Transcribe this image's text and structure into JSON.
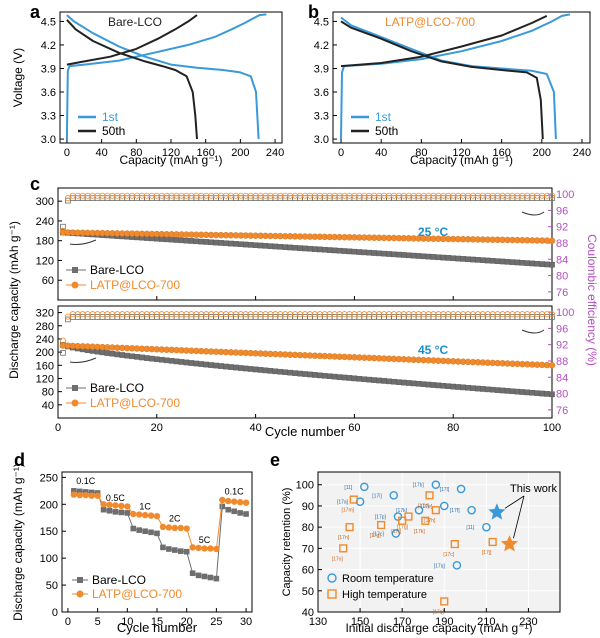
{
  "colors": {
    "blue": "#3a9ad9",
    "black": "#222222",
    "gray": "#6e6e6e",
    "orange": "#f08a2c",
    "purple": "#b24fc0",
    "cyan_text": "#1a8fd1",
    "panel_label": "#000000"
  },
  "chart_data": [
    {
      "id": "a",
      "panel_label": "a",
      "type": "line",
      "title": "Bare-LCO",
      "xlabel": "Capacity (mAh g⁻¹)",
      "ylabel": "Voltage (V)",
      "xlim": [
        -8,
        248
      ],
      "ylim": [
        2.95,
        4.62
      ],
      "xticks": [
        "0",
        "40",
        "80",
        "120",
        "160",
        "200",
        "240"
      ],
      "yticks": [
        "3.0",
        "3.3",
        "3.6",
        "3.9",
        "4.2",
        "4.5"
      ],
      "legend": [
        "1st",
        "50th"
      ],
      "series": [
        {
          "name": "1st",
          "color": "blue",
          "segments": [
            [
              [
                0,
                3.0
              ],
              [
                1,
                3.87
              ],
              [
                3,
                3.93
              ],
              [
                20,
                3.95
              ],
              [
                60,
                4.0
              ],
              [
                100,
                4.1
              ],
              [
                140,
                4.2
              ],
              [
                170,
                4.3
              ],
              [
                190,
                4.4
              ],
              [
                205,
                4.48
              ],
              [
                215,
                4.54
              ],
              [
                222,
                4.58
              ],
              [
                230,
                4.59
              ]
            ],
            [
              [
                0,
                4.58
              ],
              [
                8,
                4.5
              ],
              [
                30,
                4.35
              ],
              [
                60,
                4.18
              ],
              [
                90,
                4.05
              ],
              [
                120,
                3.95
              ],
              [
                150,
                3.91
              ],
              [
                180,
                3.88
              ],
              [
                200,
                3.85
              ],
              [
                212,
                3.8
              ],
              [
                218,
                3.6
              ],
              [
                221,
                3.0
              ]
            ]
          ]
        },
        {
          "name": "50th",
          "color": "black",
          "segments": [
            [
              [
                0,
                3.95
              ],
              [
                20,
                3.99
              ],
              [
                50,
                4.05
              ],
              [
                80,
                4.15
              ],
              [
                105,
                4.28
              ],
              [
                125,
                4.4
              ],
              [
                140,
                4.5
              ],
              [
                150,
                4.58
              ]
            ],
            [
              [
                0,
                4.52
              ],
              [
                10,
                4.4
              ],
              [
                30,
                4.25
              ],
              [
                60,
                4.1
              ],
              [
                90,
                3.99
              ],
              [
                110,
                3.93
              ],
              [
                125,
                3.88
              ],
              [
                138,
                3.8
              ],
              [
                145,
                3.6
              ],
              [
                148,
                3.3
              ],
              [
                150,
                3.0
              ]
            ]
          ]
        }
      ]
    },
    {
      "id": "b",
      "panel_label": "b",
      "type": "line",
      "title": "LATP@LCO-700",
      "xlabel": "Capacity (mAh g⁻¹)",
      "ylabel": "",
      "xlim": [
        -8,
        248
      ],
      "ylim": [
        2.95,
        4.62
      ],
      "xticks": [
        "0",
        "40",
        "80",
        "120",
        "160",
        "200",
        "240"
      ],
      "yticks": [
        "3.0",
        "3.3",
        "3.6",
        "3.9",
        "4.2",
        "4.5"
      ],
      "legend": [
        "1st",
        "50th"
      ],
      "series": [
        {
          "name": "1st",
          "color": "blue",
          "segments": [
            [
              [
                0,
                3.0
              ],
              [
                1,
                3.85
              ],
              [
                3,
                3.93
              ],
              [
                40,
                3.96
              ],
              [
                80,
                4.02
              ],
              [
                120,
                4.12
              ],
              [
                160,
                4.25
              ],
              [
                190,
                4.38
              ],
              [
                210,
                4.5
              ],
              [
                220,
                4.57
              ],
              [
                228,
                4.59
              ]
            ],
            [
              [
                0,
                4.55
              ],
              [
                10,
                4.45
              ],
              [
                40,
                4.3
              ],
              [
                70,
                4.15
              ],
              [
                100,
                4.0
              ],
              [
                130,
                3.93
              ],
              [
                160,
                3.9
              ],
              [
                190,
                3.87
              ],
              [
                205,
                3.83
              ],
              [
                212,
                3.6
              ],
              [
                214,
                3.0
              ]
            ]
          ]
        },
        {
          "name": "50th",
          "color": "black",
          "segments": [
            [
              [
                0,
                3.93
              ],
              [
                40,
                3.97
              ],
              [
                80,
                4.05
              ],
              [
                120,
                4.18
              ],
              [
                160,
                4.32
              ],
              [
                190,
                4.48
              ],
              [
                205,
                4.57
              ]
            ],
            [
              [
                0,
                4.5
              ],
              [
                10,
                4.42
              ],
              [
                40,
                4.28
              ],
              [
                70,
                4.12
              ],
              [
                100,
                3.99
              ],
              [
                130,
                3.92
              ],
              [
                160,
                3.88
              ],
              [
                185,
                3.85
              ],
              [
                195,
                3.78
              ],
              [
                199,
                3.5
              ],
              [
                201,
                3.0
              ]
            ]
          ]
        }
      ]
    },
    {
      "id": "c1",
      "panel_label": "c",
      "type": "scatter",
      "annotation": "25 °C",
      "xlim": [
        0,
        100
      ],
      "ylim": [
        0,
        340
      ],
      "y2lim": [
        74,
        101.5
      ],
      "yticks": [
        "60",
        "120",
        "180",
        "240",
        "300"
      ],
      "y2ticks": [
        "76",
        "80",
        "84",
        "88",
        "92",
        "96",
        "100"
      ],
      "legend": [
        "Bare-LCO",
        "LATP@LCO-700"
      ],
      "series": [
        {
          "name": "Bare-LCO",
          "color": "gray",
          "axis": "left",
          "start": 205,
          "end": 107,
          "first": 205,
          "peak_cycle": 4,
          "peak": 210
        },
        {
          "name": "LATP@LCO-700",
          "color": "orange",
          "axis": "left",
          "start": 205,
          "end": 180,
          "first": 205,
          "peak_cycle": 4,
          "peak": 208
        },
        {
          "name": "Bare-LCO CE",
          "color": "gray",
          "axis": "right",
          "first": 92,
          "plateau": 99.0
        },
        {
          "name": "LATP@LCO-700 CE",
          "color": "orange",
          "axis": "right",
          "first": 91,
          "plateau": 99.6
        }
      ]
    },
    {
      "id": "c2",
      "panel_label": "",
      "type": "scatter",
      "annotation": "45 °C",
      "xlabel": "Cycle number",
      "ylabel": "Discharge capacity (mAh g⁻¹)",
      "y2label": "Coulombic efficiency (%)",
      "xlim": [
        0,
        100
      ],
      "ylim": [
        0,
        340
      ],
      "y2lim": [
        74,
        101.5
      ],
      "xticks": [
        "0",
        "20",
        "40",
        "60",
        "80",
        "100"
      ],
      "yticks": [
        "40",
        "80",
        "120",
        "160",
        "200",
        "240",
        "280",
        "320"
      ],
      "y2ticks": [
        "76",
        "80",
        "84",
        "88",
        "92",
        "96",
        "100"
      ],
      "legend": [
        "Bare-LCO",
        "LATP@LCO-700"
      ],
      "series": [
        {
          "name": "Bare-LCO",
          "color": "gray",
          "axis": "left",
          "start": 222,
          "end": 72,
          "first": 222
        },
        {
          "name": "LATP@LCO-700",
          "color": "orange",
          "axis": "left",
          "start": 220,
          "end": 160,
          "first": 220
        },
        {
          "name": "Bare-LCO CE",
          "color": "gray",
          "axis": "right",
          "first": 90,
          "plateau": 98.8
        },
        {
          "name": "LATP@LCO-700 CE",
          "color": "orange",
          "axis": "right",
          "first": 93,
          "plateau": 99.5
        }
      ]
    },
    {
      "id": "d",
      "panel_label": "d",
      "type": "scatter",
      "xlabel": "Cycle number",
      "ylabel": "Discharge capacity (mAh g⁻¹)",
      "xlim": [
        -1,
        31
      ],
      "ylim": [
        0,
        260
      ],
      "xticks": [
        "0",
        "5",
        "10",
        "15",
        "20",
        "25",
        "30"
      ],
      "yticks": [
        "0",
        "50",
        "100",
        "150",
        "200",
        "250"
      ],
      "rate_labels": [
        "0.1C",
        "0.5C",
        "1C",
        "2C",
        "5C",
        "0.1C"
      ],
      "legend": [
        "Bare-LCO",
        "LATP@LCO-700"
      ],
      "series": [
        {
          "name": "Bare-LCO",
          "color": "gray",
          "values": [
            225,
            224,
            223,
            222,
            221,
            190,
            188,
            186,
            185,
            184,
            155,
            152,
            150,
            148,
            146,
            120,
            117,
            115,
            113,
            112,
            72,
            68,
            66,
            64,
            62,
            196,
            190,
            187,
            184,
            182
          ]
        },
        {
          "name": "LATP@LCO-700",
          "color": "orange",
          "values": [
            218,
            217,
            217,
            216,
            216,
            200,
            199,
            198,
            197,
            196,
            182,
            181,
            180,
            179,
            178,
            158,
            157,
            156,
            156,
            155,
            120,
            119,
            118,
            118,
            117,
            208,
            206,
            205,
            204,
            203
          ]
        }
      ]
    },
    {
      "id": "e",
      "panel_label": "e",
      "type": "scatter",
      "xlabel": "Initial discharge capacity (mAh g⁻¹)",
      "ylabel": "Capacity retention (%)",
      "xlim": [
        130,
        245
      ],
      "ylim": [
        40,
        106
      ],
      "xticks": [
        "130",
        "150",
        "170",
        "190",
        "210",
        "230"
      ],
      "yticks": [
        "40",
        "50",
        "60",
        "70",
        "80",
        "90",
        "100"
      ],
      "annotation": "This work",
      "legend": [
        "Room temperature",
        "High temperature"
      ],
      "room": [
        {
          "x": 152,
          "y": 99,
          "ref": "[11]"
        },
        {
          "x": 150,
          "y": 92,
          "ref": "[17a]"
        },
        {
          "x": 168,
          "y": 85,
          "ref": "[17p]"
        },
        {
          "x": 167,
          "y": 77,
          "ref": "[17c]"
        },
        {
          "x": 178,
          "y": 88,
          "ref": "[17k]"
        },
        {
          "x": 186,
          "y": 100,
          "ref": "[17b]"
        },
        {
          "x": 190,
          "y": 90,
          "ref": "[17e]"
        },
        {
          "x": 198,
          "y": 98,
          "ref": "[17l]"
        },
        {
          "x": 196,
          "y": 62,
          "ref": "[17q]"
        },
        {
          "x": 203,
          "y": 88,
          "ref": "[17f]"
        },
        {
          "x": 210,
          "y": 80,
          "ref": "[11]"
        },
        {
          "x": 166,
          "y": 95,
          "ref": "[17i]"
        }
      ],
      "high": [
        {
          "x": 147,
          "y": 93,
          "ref": "[17m]"
        },
        {
          "x": 145,
          "y": 80,
          "ref": "[17n]"
        },
        {
          "x": 142,
          "y": 70,
          "ref": "[17o]"
        },
        {
          "x": 160,
          "y": 81,
          "ref": "[17g]"
        },
        {
          "x": 173,
          "y": 85,
          "ref": "[17g]"
        },
        {
          "x": 183,
          "y": 95,
          "ref": "[17d]"
        },
        {
          "x": 181,
          "y": 83,
          "ref": "[17k]"
        },
        {
          "x": 186,
          "y": 88,
          "ref": "[17h]"
        },
        {
          "x": 195,
          "y": 72,
          "ref": "[17c]"
        },
        {
          "x": 190,
          "y": 45,
          "ref": "[17q]"
        },
        {
          "x": 213,
          "y": 73,
          "ref": "[17j]"
        },
        {
          "x": 170,
          "y": 83,
          "ref": "[17f]"
        }
      ],
      "this_work": [
        {
          "x": 215,
          "y": 87,
          "series": "Room temperature"
        },
        {
          "x": 221,
          "y": 72,
          "series": "High temperature"
        }
      ]
    }
  ]
}
